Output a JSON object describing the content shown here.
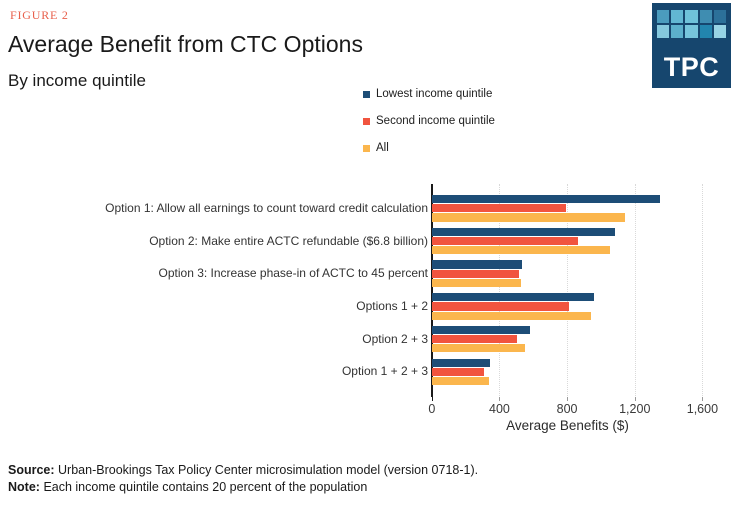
{
  "figure_label": "FIGURE 2",
  "title": "Average Benefit from CTC Options",
  "subtitle": "By income quintile",
  "logo": {
    "text": "TPC",
    "background": "#16466e",
    "squares": [
      "#4b9cbe",
      "#62b7d3",
      "#6fc2da",
      "#3f8db1",
      "#2c7099",
      "#85c8dd",
      "#5cb0cc",
      "#77c5dc",
      "#2285ae",
      "#97d3e4"
    ]
  },
  "chart_data": {
    "type": "bar",
    "orientation": "horizontal",
    "title": "Average Benefit from CTC Options",
    "subtitle": "By income quintile",
    "categories": [
      "Option 1: Allow all earnings to count toward credit calculation",
      "Option 2: Make entire ACTC refundable ($6.8 billion)",
      "Option 3: Increase phase-in of ACTC to 45 percent",
      "Options 1 + 2",
      "Option 2 + 3",
      "Option 1 + 2 + 3"
    ],
    "series": [
      {
        "name": "Lowest income quintile",
        "color": "#1d4d77",
        "values": [
          1350,
          1080,
          530,
          960,
          580,
          340
        ]
      },
      {
        "name": "Second income quintile",
        "color": "#f1543f",
        "values": [
          790,
          865,
          515,
          810,
          505,
          310
        ]
      },
      {
        "name": "All",
        "color": "#fbb64d",
        "values": [
          1140,
          1050,
          525,
          940,
          550,
          335
        ]
      }
    ],
    "xlabel": "Average Benefits ($)",
    "xlim": [
      0,
      1600
    ],
    "xticks": [
      {
        "value": 0,
        "label": "0"
      },
      {
        "value": 400,
        "label": "400"
      },
      {
        "value": 800,
        "label": "800"
      },
      {
        "value": 1200,
        "label": "1,200"
      },
      {
        "value": 1600,
        "label": "1,600"
      }
    ],
    "grid": "vertical dotted",
    "legend_position": "top"
  },
  "footer": {
    "source_label": "Source:",
    "source_text": "Urban-Brookings Tax Policy Center microsimulation model (version 0718-1).",
    "note_label": "Note:",
    "note_text": "Each income quintile contains 20 percent of the population"
  },
  "colors": {
    "figure_label": "#e8604c",
    "axis": "#1a1a1a",
    "gridline": "#d9d9d9"
  }
}
